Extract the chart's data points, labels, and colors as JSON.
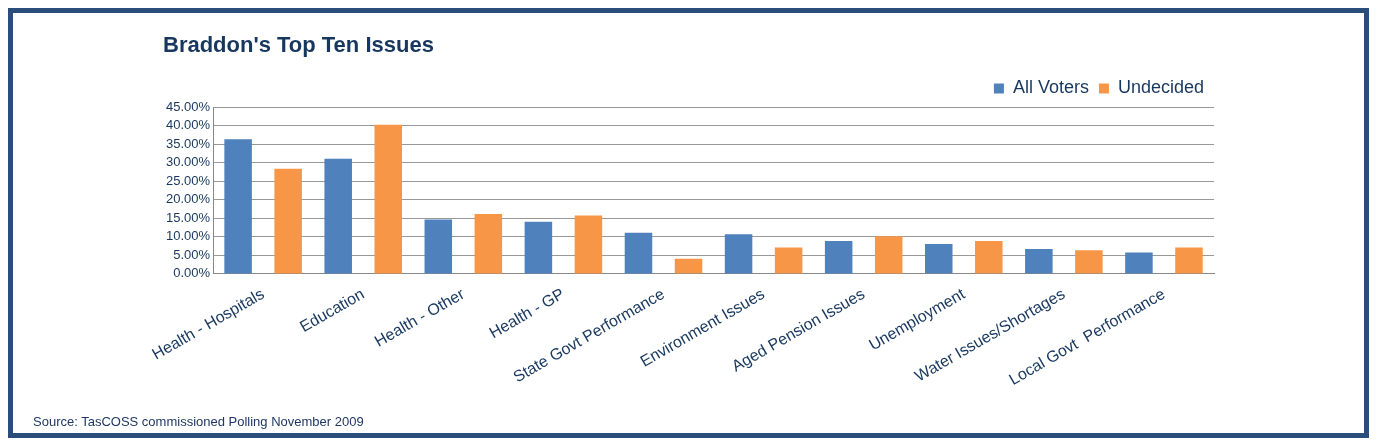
{
  "chart_data": {
    "type": "bar",
    "title": "Braddon's Top Ten Issues",
    "categories": [
      "Health - Hospitals",
      "Education",
      "Health - Other",
      "Health - GP",
      "State Govt Performance",
      "Environment Issues",
      "Aged Pension Issues",
      "Unemployment",
      "Water Issues/Shortages",
      "Local Govt  Performance"
    ],
    "series": [
      {
        "name": "All Voters",
        "color": "#4f81bd",
        "values": [
          36.4,
          31.1,
          14.7,
          14.1,
          11.1,
          10.7,
          8.9,
          8.1,
          6.7,
          5.8
        ]
      },
      {
        "name": "Undecided",
        "color": "#f79646",
        "values": [
          28.4,
          40.3,
          16.2,
          15.8,
          4.1,
          7.1,
          10.2,
          8.9,
          6.4,
          7.1
        ]
      }
    ],
    "ylim": [
      0,
      45
    ],
    "yticks": [
      {
        "value": 0,
        "label": "0.00%"
      },
      {
        "value": 5,
        "label": "5.00%"
      },
      {
        "value": 10,
        "label": "10.00%"
      },
      {
        "value": 15,
        "label": "15.00%"
      },
      {
        "value": 20,
        "label": "20.00%"
      },
      {
        "value": 25,
        "label": "25.00%"
      },
      {
        "value": 30,
        "label": "30.00%"
      },
      {
        "value": 35,
        "label": "35.00%"
      },
      {
        "value": 40,
        "label": "40.00%"
      },
      {
        "value": 45,
        "label": "45.00%"
      }
    ],
    "grid": "y",
    "legend": "top right",
    "annotations": [
      "Source: TasCOSS commissioned Polling November 2009"
    ]
  }
}
